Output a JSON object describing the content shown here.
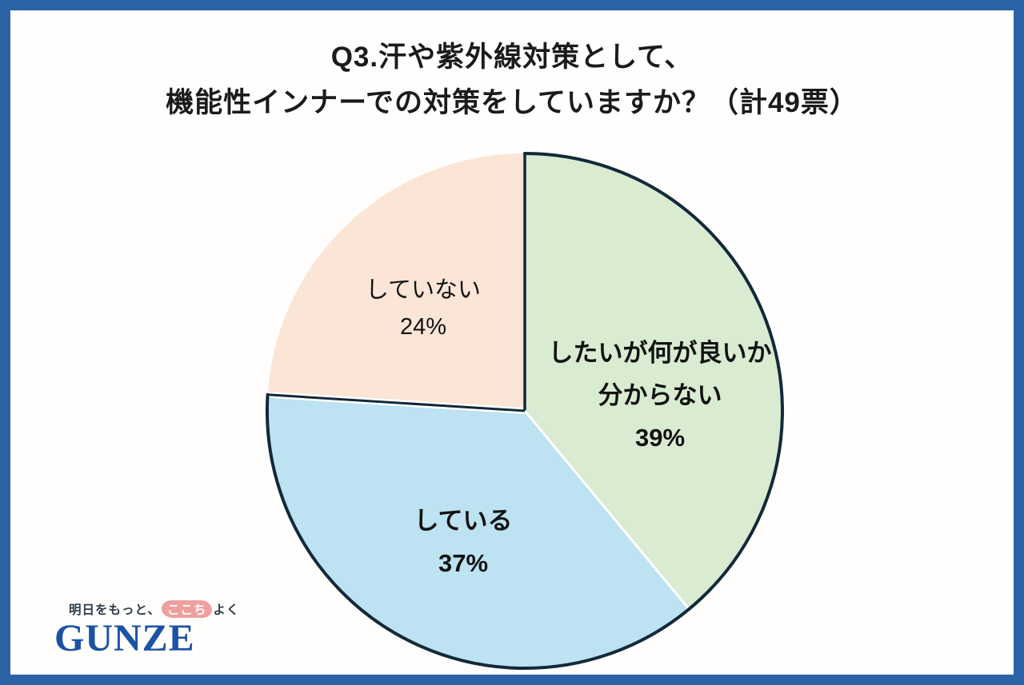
{
  "page": {
    "background": "#fffefc",
    "frame_color": "#2b63a6"
  },
  "title": {
    "line1": "Q3.汗や紫外線対策として、",
    "line2": "機能性インナーでの対策をしていますか？（計49票）"
  },
  "chart_data": {
    "type": "pie",
    "title": "Q3.汗や紫外線対策として、機能性インナーでの対策をしていますか？",
    "total_votes_label": "計49票",
    "total": 49,
    "direction": "clockwise",
    "start_angle_deg": 0,
    "slices": [
      {
        "label": "したいが何が良いか分からない",
        "percent": 39,
        "percent_label": "39%",
        "color": "#d9ebd1",
        "label_lines": [
          "したいが何が良いか",
          "分からない"
        ],
        "bold": true
      },
      {
        "label": "している",
        "percent": 37,
        "percent_label": "37%",
        "color": "#bde2f2",
        "label_lines": [
          "している"
        ],
        "bold": true
      },
      {
        "label": "していない",
        "percent": 24,
        "percent_label": "24%",
        "color": "#fbe5d6",
        "label_lines": [
          "していない"
        ],
        "bold": false
      }
    ],
    "outline": {
      "color": "#13293a",
      "width": 4,
      "arc_covers_slices": [
        0,
        1
      ]
    },
    "boundaries": [
      {
        "color": "#13293a",
        "width": 3.5
      },
      {
        "color": "#ffffff",
        "width": 3
      },
      {
        "color": "#13293a",
        "width": 3,
        "halo_color": "#ffffff",
        "halo_width": 8
      }
    ]
  },
  "logo": {
    "tagline_prefix": "明日をもっと、",
    "tagline_highlight": "ここち",
    "tagline_suffix": "よく",
    "highlight_color": "#ef9f9e",
    "brand": "GUNZE",
    "brand_color": "#1b52a5"
  }
}
